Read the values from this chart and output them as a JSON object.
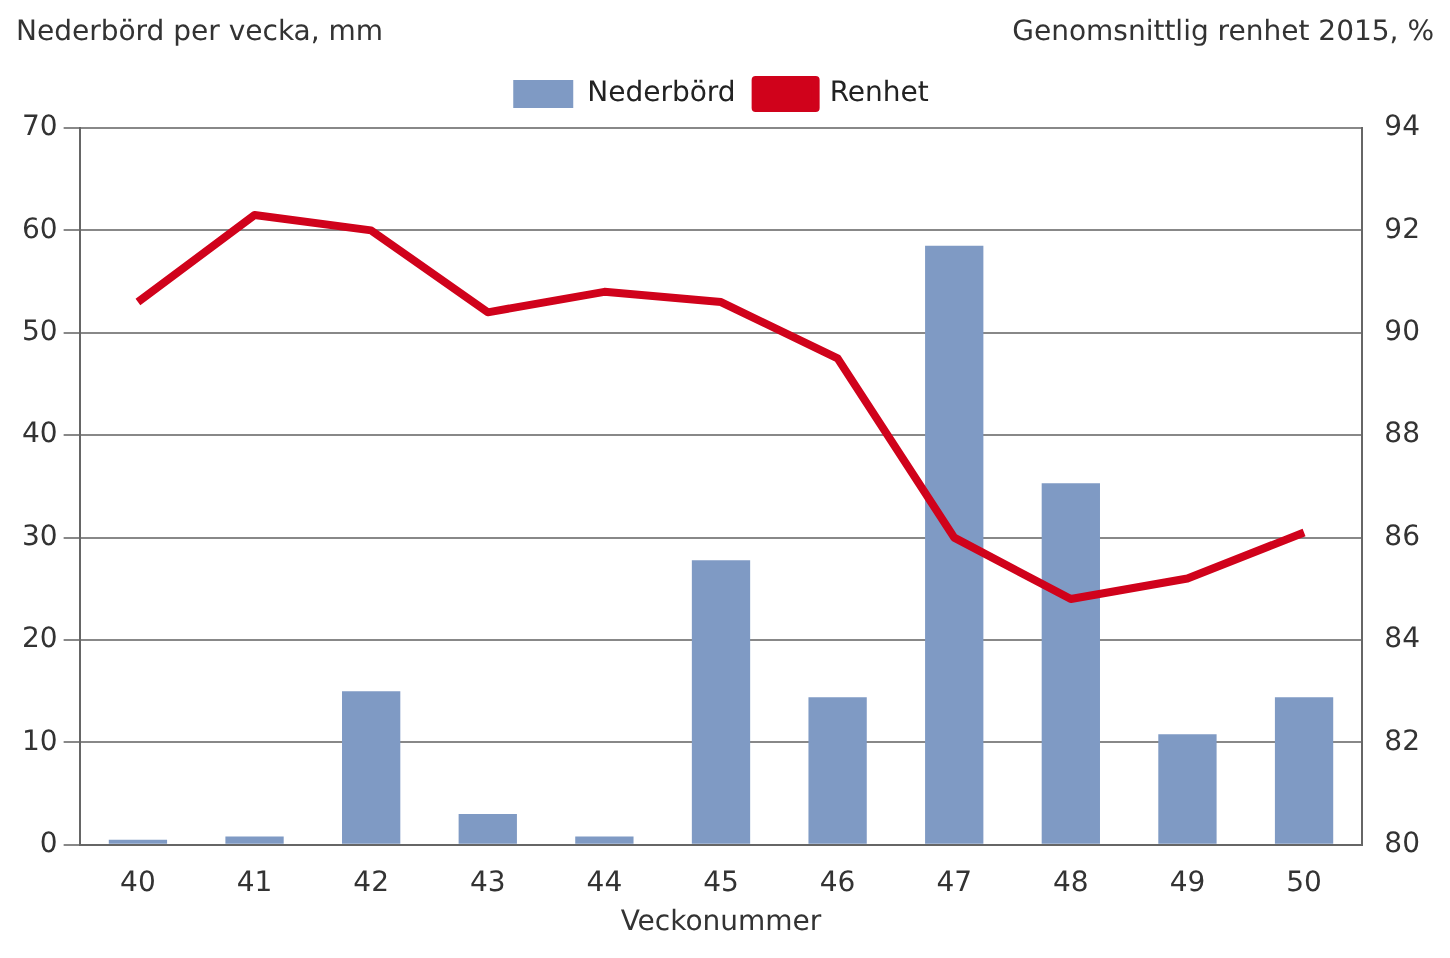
{
  "chart_data": {
    "type": "bar",
    "xlabel": "Veckonummer",
    "ylabel": "Nederbörd per vecka, mm",
    "y2label": "Genomsnittlig renhet 2015, %",
    "categories": [
      "40",
      "41",
      "42",
      "43",
      "44",
      "45",
      "46",
      "47",
      "48",
      "49",
      "50"
    ],
    "series": [
      {
        "name": "Nederbörd",
        "color": "#7f9ac4",
        "values": [
          0.5,
          0.8,
          15,
          3,
          0.8,
          27.8,
          14.4,
          58.5,
          35.3,
          10.8,
          14.4
        ]
      },
      {
        "name": "Renhet",
        "type": "line",
        "axis": "y2",
        "color": "#d0021b",
        "values": [
          90.6,
          92.3,
          92.0,
          90.4,
          90.8,
          90.6,
          89.5,
          86.0,
          84.8,
          85.2,
          86.1
        ]
      }
    ],
    "ylim": [
      0,
      70
    ],
    "yticks": [
      0,
      10,
      20,
      30,
      40,
      50,
      60,
      70
    ],
    "y2lim": [
      80,
      94
    ],
    "y2ticks": [
      80,
      82,
      84,
      86,
      88,
      90,
      92,
      94
    ],
    "grid": "y",
    "legend": "top",
    "marker": "none"
  }
}
